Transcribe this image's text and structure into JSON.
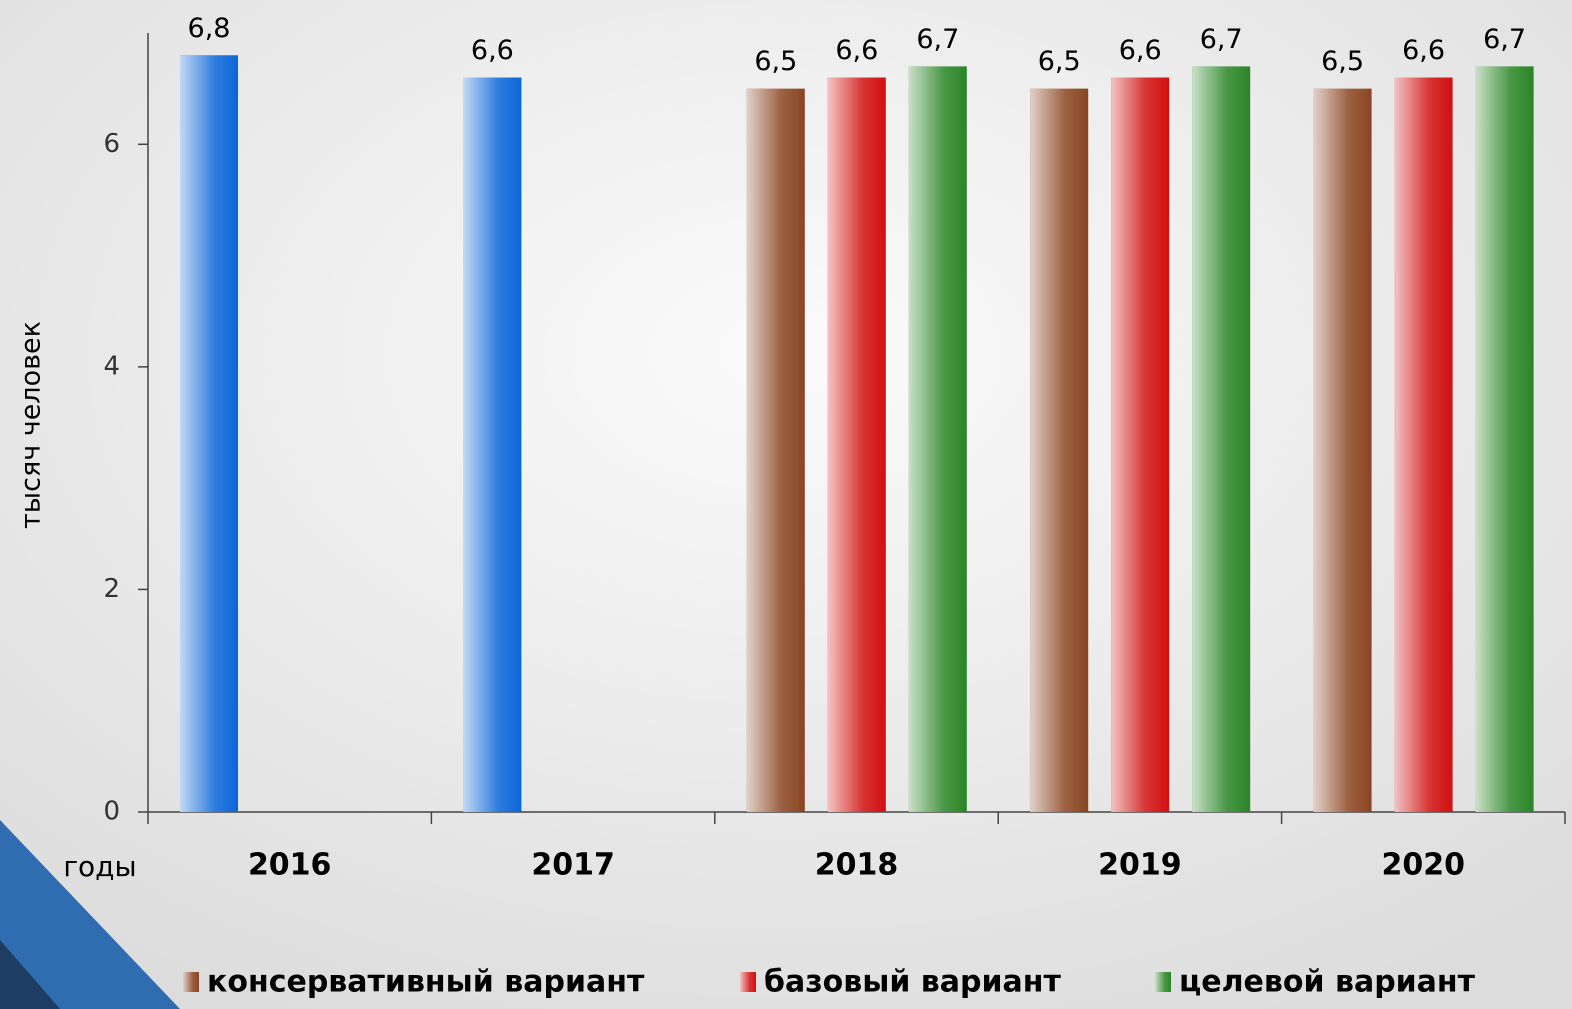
{
  "chart_data": {
    "type": "bar",
    "y_label": "тысяч человек",
    "x_label": "годы",
    "categories": [
      "2016",
      "2017",
      "2018",
      "2019",
      "2020"
    ],
    "series": [
      {
        "color": "#0a66d8",
        "values": [
          6.8,
          6.6,
          null,
          null,
          null
        ],
        "value_labels": [
          "6,8",
          "6,6",
          null,
          null,
          null
        ]
      },
      {
        "name": "консервативный вариант",
        "color": "#8a4522",
        "values": [
          null,
          null,
          6.5,
          6.5,
          6.5
        ],
        "value_labels": [
          null,
          null,
          "6,5",
          "6,5",
          "6,5"
        ]
      },
      {
        "name": "базовый вариант",
        "color": "#d01010",
        "values": [
          null,
          null,
          6.6,
          6.6,
          6.6
        ],
        "value_labels": [
          null,
          null,
          "6,6",
          "6,6",
          "6,6"
        ]
      },
      {
        "name": "целевой вариант",
        "color": "#2a8526",
        "values": [
          null,
          null,
          6.7,
          6.7,
          6.7
        ],
        "value_labels": [
          null,
          null,
          "6,7",
          "6,7",
          "6,7"
        ]
      }
    ],
    "ylim": [
      0,
      7
    ],
    "yticks": [
      0,
      2,
      4,
      6
    ],
    "grid": false,
    "legend": "bottom"
  }
}
